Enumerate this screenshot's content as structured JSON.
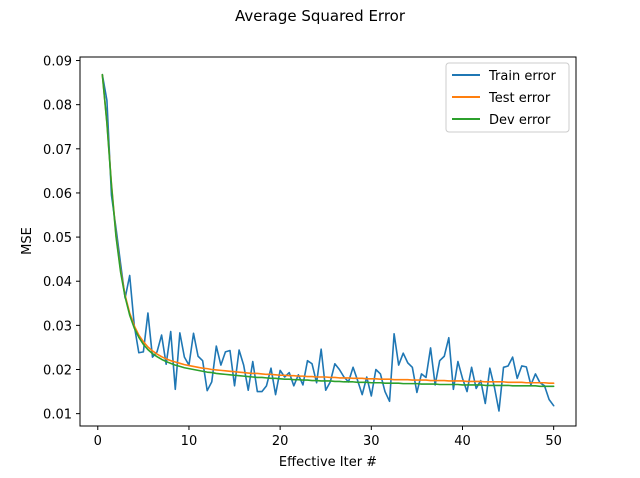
{
  "chart_data": {
    "type": "line",
    "title": "Average Squared Error",
    "xlabel": "Effective Iter #",
    "ylabel": "MSE",
    "xlim": [
      -1.95,
      52.45
    ],
    "ylim": [
      0.0072,
      0.0908
    ],
    "x_ticks": [
      0,
      10,
      20,
      30,
      40,
      50
    ],
    "x_tick_labels": [
      "0",
      "10",
      "20",
      "30",
      "40",
      "50"
    ],
    "y_ticks": [
      0.01,
      0.02,
      0.03,
      0.04,
      0.05,
      0.06,
      0.07,
      0.08,
      0.09
    ],
    "y_tick_labels": [
      "0.01",
      "0.02",
      "0.03",
      "0.04",
      "0.05",
      "0.06",
      "0.07",
      "0.08",
      "0.09"
    ],
    "grid": false,
    "legend_position": "top-right",
    "x": [
      0.5,
      1.0,
      1.5,
      2.0,
      2.5,
      3.0,
      3.5,
      4.0,
      4.5,
      5.0,
      5.5,
      6.0,
      6.5,
      7.0,
      7.5,
      8.0,
      8.5,
      9.0,
      9.5,
      10.0,
      10.5,
      11.0,
      11.5,
      12.0,
      12.5,
      13.0,
      13.5,
      14.0,
      14.5,
      15.0,
      15.5,
      16.0,
      16.5,
      17.0,
      17.5,
      18.0,
      18.5,
      19.0,
      19.5,
      20.0,
      20.5,
      21.0,
      21.5,
      22.0,
      22.5,
      23.0,
      23.5,
      24.0,
      24.5,
      25.0,
      25.5,
      26.0,
      26.5,
      27.0,
      27.5,
      28.0,
      28.5,
      29.0,
      29.5,
      30.0,
      30.5,
      31.0,
      31.5,
      32.0,
      32.5,
      33.0,
      33.5,
      34.0,
      34.5,
      35.0,
      35.5,
      36.0,
      36.5,
      37.0,
      37.5,
      38.0,
      38.5,
      39.0,
      39.5,
      40.0,
      40.5,
      41.0,
      41.5,
      42.0,
      42.5,
      43.0,
      43.5,
      44.0,
      44.5,
      45.0,
      45.5,
      46.0,
      46.5,
      47.0,
      47.5,
      48.0,
      48.5,
      49.0,
      49.5,
      50.0
    ],
    "series": [
      {
        "name": "Train error",
        "color": "#1f77b4",
        "values": [
          0.0868,
          0.081,
          0.0595,
          0.052,
          0.044,
          0.0362,
          0.0413,
          0.03,
          0.0238,
          0.024,
          0.0328,
          0.0228,
          0.024,
          0.0278,
          0.0212,
          0.0286,
          0.0155,
          0.0283,
          0.0228,
          0.021,
          0.0282,
          0.023,
          0.022,
          0.0152,
          0.0172,
          0.0253,
          0.021,
          0.024,
          0.0243,
          0.0163,
          0.0244,
          0.021,
          0.0153,
          0.0218,
          0.015,
          0.015,
          0.0163,
          0.0203,
          0.0143,
          0.0198,
          0.0183,
          0.0193,
          0.0163,
          0.0188,
          0.0165,
          0.022,
          0.0213,
          0.017,
          0.0246,
          0.0153,
          0.0172,
          0.0213,
          0.02,
          0.0183,
          0.0172,
          0.0205,
          0.0175,
          0.0143,
          0.0183,
          0.014,
          0.02,
          0.019,
          0.015,
          0.0128,
          0.0281,
          0.021,
          0.0237,
          0.0215,
          0.0205,
          0.0148,
          0.019,
          0.0182,
          0.0249,
          0.0165,
          0.022,
          0.023,
          0.0272,
          0.0155,
          0.0218,
          0.018,
          0.015,
          0.0205,
          0.0157,
          0.0175,
          0.0123,
          0.0203,
          0.016,
          0.0106,
          0.0205,
          0.0208,
          0.0228,
          0.018,
          0.0208,
          0.0206,
          0.0165,
          0.019,
          0.017,
          0.0163,
          0.0132,
          0.0118
        ]
      },
      {
        "name": "Test error",
        "color": "#ff7f0e",
        "values": [
          0.0868,
          0.076,
          0.062,
          0.0505,
          0.0425,
          0.0368,
          0.0328,
          0.0299,
          0.0278,
          0.0263,
          0.0251,
          0.0242,
          0.0235,
          0.0229,
          0.0224,
          0.022,
          0.0217,
          0.0214,
          0.0211,
          0.0209,
          0.0207,
          0.0205,
          0.0203,
          0.0202,
          0.02,
          0.0199,
          0.0198,
          0.0197,
          0.0196,
          0.0195,
          0.0194,
          0.0193,
          0.0192,
          0.0191,
          0.0191,
          0.019,
          0.0189,
          0.0189,
          0.0188,
          0.0187,
          0.0187,
          0.0186,
          0.0186,
          0.0185,
          0.0185,
          0.0184,
          0.0184,
          0.0183,
          0.0183,
          0.0183,
          0.0182,
          0.0182,
          0.0181,
          0.0181,
          0.0181,
          0.018,
          0.018,
          0.018,
          0.0179,
          0.0179,
          0.0179,
          0.0178,
          0.0178,
          0.0178,
          0.0177,
          0.0177,
          0.0177,
          0.0177,
          0.0176,
          0.0176,
          0.0176,
          0.0176,
          0.0175,
          0.0175,
          0.0175,
          0.0175,
          0.0174,
          0.0174,
          0.0174,
          0.0174,
          0.0173,
          0.0173,
          0.0173,
          0.0173,
          0.0172,
          0.0172,
          0.0172,
          0.0172,
          0.0172,
          0.0171,
          0.0171,
          0.0171,
          0.0171,
          0.017,
          0.017,
          0.017,
          0.017,
          0.017,
          0.0169,
          0.0169
        ]
      },
      {
        "name": "Dev error",
        "color": "#2ca02c",
        "values": [
          0.0868,
          0.0758,
          0.0617,
          0.0501,
          0.0421,
          0.0364,
          0.0323,
          0.0294,
          0.0273,
          0.0257,
          0.0245,
          0.0236,
          0.0229,
          0.0223,
          0.0218,
          0.0214,
          0.021,
          0.0207,
          0.0204,
          0.0202,
          0.02,
          0.0198,
          0.0196,
          0.0194,
          0.0193,
          0.0191,
          0.019,
          0.0189,
          0.0188,
          0.0187,
          0.0186,
          0.0185,
          0.0184,
          0.0183,
          0.0182,
          0.0182,
          0.0181,
          0.018,
          0.018,
          0.0179,
          0.0178,
          0.0178,
          0.0177,
          0.0177,
          0.0176,
          0.0176,
          0.0175,
          0.0175,
          0.0174,
          0.0174,
          0.0174,
          0.0173,
          0.0173,
          0.0172,
          0.0172,
          0.0172,
          0.0171,
          0.0171,
          0.0171,
          0.017,
          0.017,
          0.017,
          0.0169,
          0.0169,
          0.0169,
          0.0169,
          0.0168,
          0.0168,
          0.0168,
          0.0168,
          0.0167,
          0.0167,
          0.0167,
          0.0167,
          0.0166,
          0.0166,
          0.0166,
          0.0166,
          0.0166,
          0.0165,
          0.0165,
          0.0165,
          0.0165,
          0.0165,
          0.0164,
          0.0164,
          0.0164,
          0.0164,
          0.0164,
          0.0164,
          0.0163,
          0.0163,
          0.0163,
          0.0163,
          0.0163,
          0.0163,
          0.0162,
          0.0162,
          0.0162,
          0.0162
        ]
      }
    ]
  }
}
